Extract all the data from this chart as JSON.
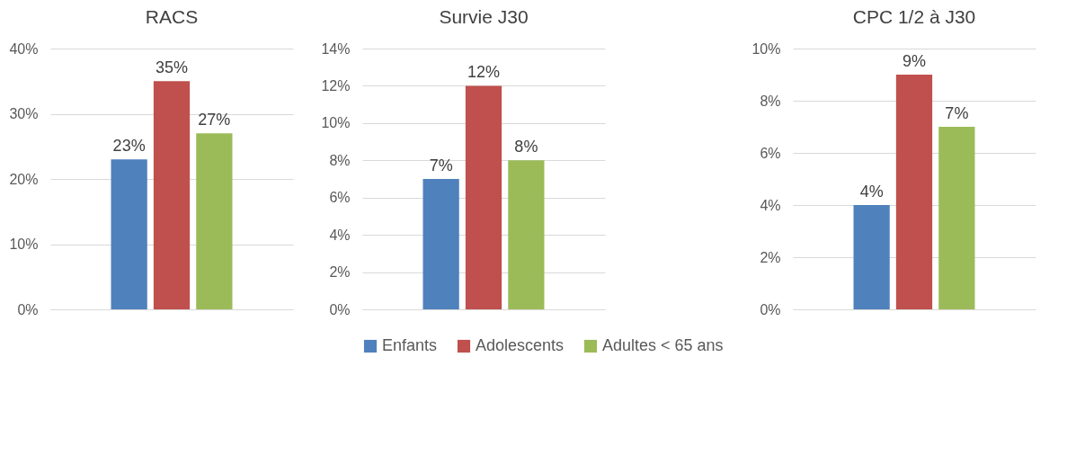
{
  "chart_data": [
    {
      "type": "bar",
      "title": "RACS",
      "categories": [
        null
      ],
      "series": [
        {
          "color": "#4f81bd",
          "values": [
            23
          ],
          "value_labels": [
            "23%"
          ]
        },
        {
          "color": "#c0504d",
          "values": [
            35
          ],
          "value_labels": [
            "35%"
          ]
        },
        {
          "color": "#9bbb59",
          "values": [
            27
          ],
          "value_labels": [
            "27%"
          ]
        }
      ],
      "ylim": [
        0,
        40
      ],
      "yticks": [
        {
          "value": 0,
          "label": "0%"
        },
        {
          "value": 10,
          "label": "10%"
        },
        {
          "value": 20,
          "label": "20%"
        },
        {
          "value": 30,
          "label": "30%"
        },
        {
          "value": 40,
          "label": "40%"
        }
      ],
      "grid": "y"
    },
    {
      "type": "bar",
      "title": "Survie J30",
      "categories": [
        null
      ],
      "series": [
        {
          "name": "Enfants",
          "color": "#4f81bd",
          "values": [
            7
          ],
          "value_labels": [
            "7%"
          ]
        },
        {
          "name": "Adolescents",
          "color": "#c0504d",
          "values": [
            12
          ],
          "value_labels": [
            "12%"
          ]
        },
        {
          "name": "Adultes < 65 ans",
          "color": "#9bbb59",
          "values": [
            8
          ],
          "value_labels": [
            "8%"
          ]
        }
      ],
      "ylim": [
        0,
        14
      ],
      "yticks": [
        {
          "value": 0,
          "label": "0%"
        },
        {
          "value": 2,
          "label": "2%"
        },
        {
          "value": 4,
          "label": "4%"
        },
        {
          "value": 6,
          "label": "6%"
        },
        {
          "value": 8,
          "label": "8%"
        },
        {
          "value": 10,
          "label": "10%"
        },
        {
          "value": 12,
          "label": "12%"
        },
        {
          "value": 14,
          "label": "14%"
        }
      ],
      "grid": "y",
      "legend": "bottom"
    },
    {
      "type": "bar",
      "title": "CPC 1/2 à J30",
      "categories": [
        null
      ],
      "series": [
        {
          "color": "#4f81bd",
          "values": [
            4
          ],
          "value_labels": [
            "4%"
          ]
        },
        {
          "color": "#c0504d",
          "values": [
            9
          ],
          "value_labels": [
            "9%"
          ]
        },
        {
          "color": "#9bbb59",
          "values": [
            7
          ],
          "value_labels": [
            "7%"
          ]
        }
      ],
      "ylim": [
        0,
        10
      ],
      "yticks": [
        {
          "value": 0,
          "label": "0%"
        },
        {
          "value": 2,
          "label": "2%"
        },
        {
          "value": 4,
          "label": "4%"
        },
        {
          "value": 6,
          "label": "6%"
        },
        {
          "value": 8,
          "label": "8%"
        },
        {
          "value": 10,
          "label": "10%"
        }
      ],
      "grid": "y"
    }
  ]
}
